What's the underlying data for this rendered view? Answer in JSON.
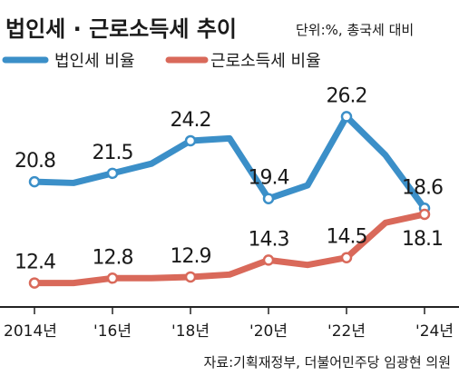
{
  "chart_data": {
    "type": "line",
    "title": "법인세 · 근로소득세 추이",
    "subtitle": "단위:%, 총국세 대비",
    "source": "자료:기획재정부, 더불어민주당 임광현 의원",
    "x": [
      2014,
      2015,
      2016,
      2017,
      2018,
      2019,
      2020,
      2021,
      2022,
      2023,
      2024
    ],
    "x_tick_labels": [
      "2014년",
      "'16년",
      "'18년",
      "'20년",
      "'22년",
      "'24년"
    ],
    "x_tick_values": [
      2014,
      2016,
      2018,
      2020,
      2022,
      2024
    ],
    "ylim": [
      8,
      30
    ],
    "grid": false,
    "legend": "top-left",
    "series": [
      {
        "name": "법인세 비율",
        "color": "#3b8fc8",
        "values": [
          20.8,
          20.7,
          21.5,
          22.3,
          24.2,
          24.4,
          19.4,
          20.5,
          26.2,
          23.0,
          18.6
        ],
        "labeled_indices": [
          0,
          2,
          4,
          6,
          8,
          10
        ],
        "data_labels": [
          "20.8",
          "21.5",
          "24.2",
          "19.4",
          "26.2",
          "18.6"
        ]
      },
      {
        "name": "근로소득세 비율",
        "color": "#d9695a",
        "values": [
          12.4,
          12.4,
          12.8,
          12.8,
          12.9,
          13.1,
          14.3,
          13.9,
          14.5,
          17.4,
          18.1
        ],
        "labeled_indices": [
          0,
          2,
          4,
          6,
          8,
          10
        ],
        "data_labels": [
          "12.4",
          "12.8",
          "12.9",
          "14.3",
          "14.5",
          "18.1"
        ]
      }
    ]
  }
}
